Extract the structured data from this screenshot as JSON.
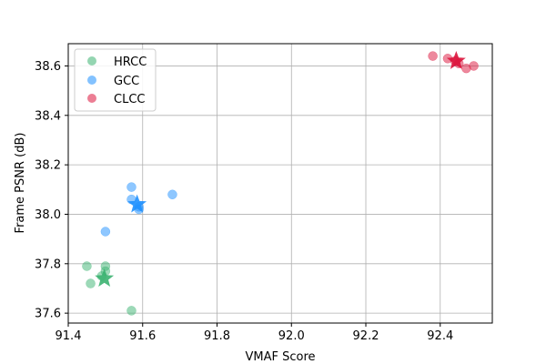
{
  "chart_data": {
    "type": "scatter",
    "xlabel": "VMAF Score",
    "ylabel": "Frame PSNR (dB)",
    "xlim": [
      91.4,
      92.54
    ],
    "ylim": [
      37.56,
      38.69
    ],
    "xticks": [
      91.4,
      91.6,
      91.8,
      92.0,
      92.2,
      92.4
    ],
    "yticks": [
      37.6,
      37.8,
      38.0,
      38.2,
      38.4,
      38.6
    ],
    "xtick_labels": [
      "91.4",
      "91.6",
      "91.8",
      "92.0",
      "92.2",
      "92.4"
    ],
    "ytick_labels": [
      "37.6",
      "37.8",
      "38.0",
      "38.2",
      "38.4",
      "38.6"
    ],
    "grid": true,
    "legend_position": "top-left",
    "series": [
      {
        "name": "HRCC",
        "color": "#3cb371",
        "points": [
          {
            "x": 91.45,
            "y": 37.79
          },
          {
            "x": 91.46,
            "y": 37.72
          },
          {
            "x": 91.49,
            "y": 37.75
          },
          {
            "x": 91.5,
            "y": 37.77
          },
          {
            "x": 91.5,
            "y": 37.79
          },
          {
            "x": 91.57,
            "y": 37.61
          }
        ],
        "mean": {
          "x": 91.497,
          "y": 37.74
        }
      },
      {
        "name": "GCC",
        "color": "#1e90ff",
        "points": [
          {
            "x": 91.5,
            "y": 37.93
          },
          {
            "x": 91.57,
            "y": 38.06
          },
          {
            "x": 91.57,
            "y": 38.11
          },
          {
            "x": 91.59,
            "y": 38.02
          },
          {
            "x": 91.59,
            "y": 38.03
          },
          {
            "x": 91.68,
            "y": 38.08
          }
        ],
        "mean": {
          "x": 91.585,
          "y": 38.04
        }
      },
      {
        "name": "CLCC",
        "color": "#dc143c",
        "points": [
          {
            "x": 92.38,
            "y": 38.64
          },
          {
            "x": 92.42,
            "y": 38.63
          },
          {
            "x": 92.44,
            "y": 38.62
          },
          {
            "x": 92.45,
            "y": 38.61
          },
          {
            "x": 92.47,
            "y": 38.59
          },
          {
            "x": 92.49,
            "y": 38.6
          }
        ],
        "mean": {
          "x": 92.443,
          "y": 38.62
        }
      }
    ]
  }
}
